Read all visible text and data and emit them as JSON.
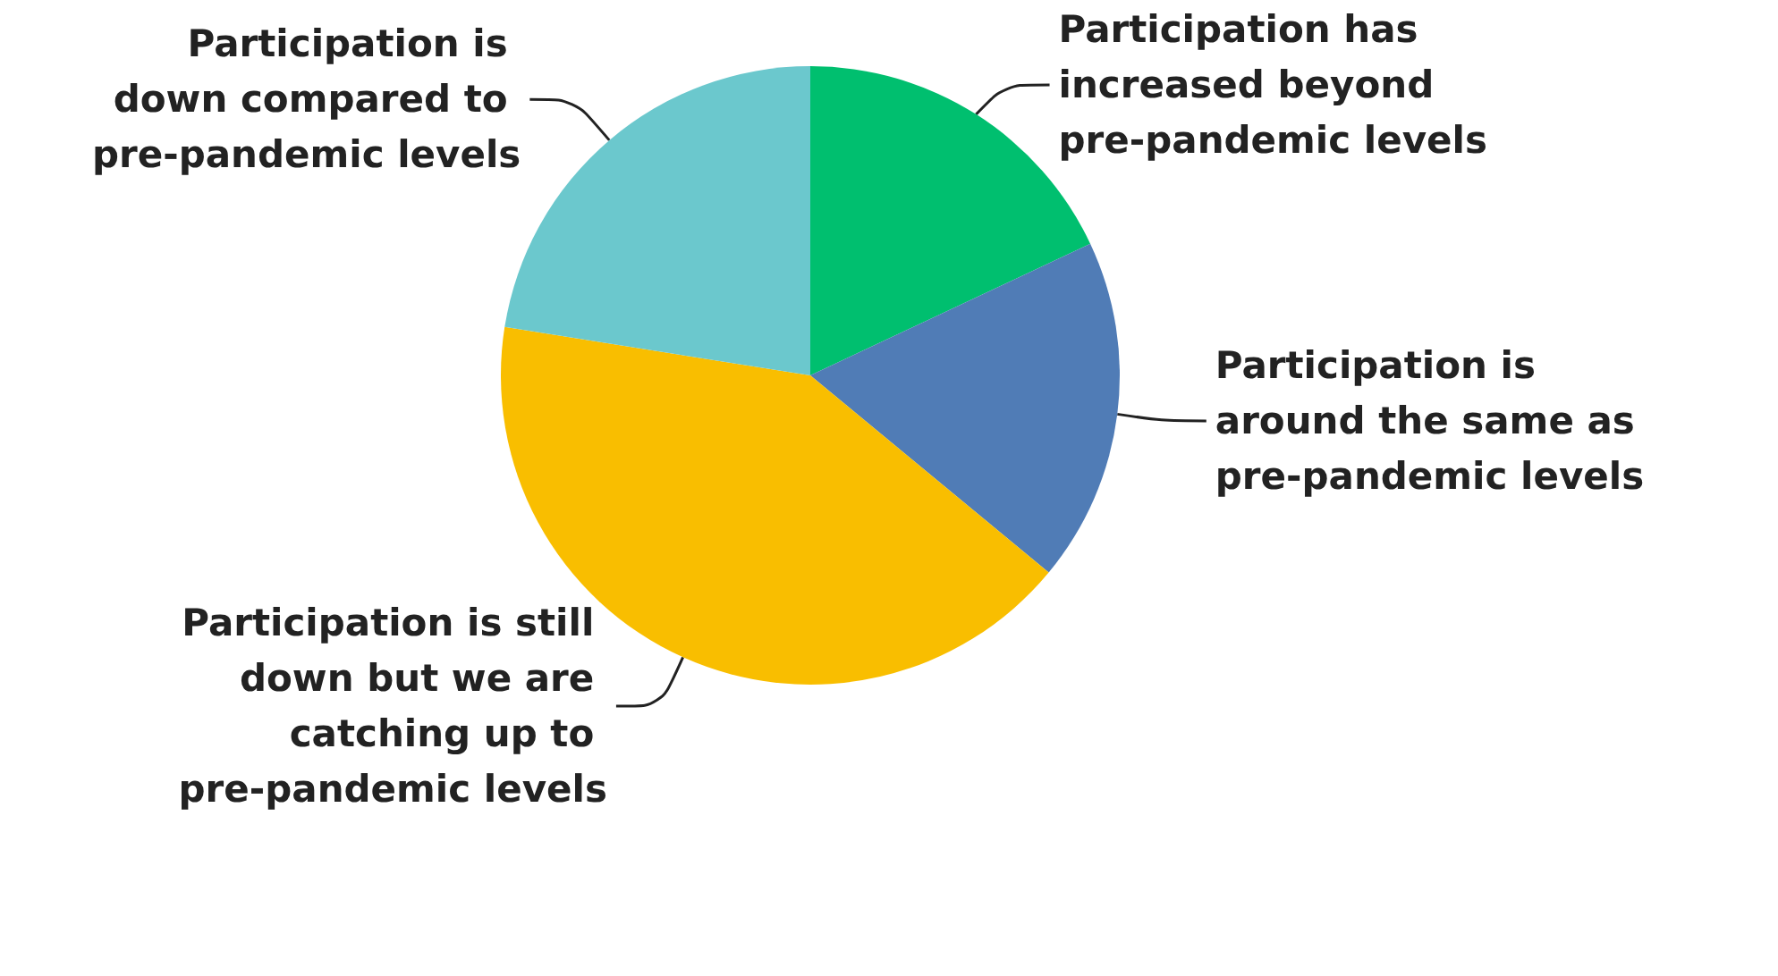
{
  "chart_data": {
    "type": "pie",
    "categories": [
      "Participation has increased beyond pre-pandemic levels",
      "Participation is around the same as pre-pandemic levels",
      "Participation is still down but we are catching up to pre-pandemic levels",
      "Participation is down compared to pre-pandemic levels"
    ],
    "values": [
      18,
      18,
      41.5,
      22.5
    ],
    "colors": [
      "#00bf6f",
      "#507cb6",
      "#f9be00",
      "#6bc8cd"
    ],
    "legend": false
  }
}
